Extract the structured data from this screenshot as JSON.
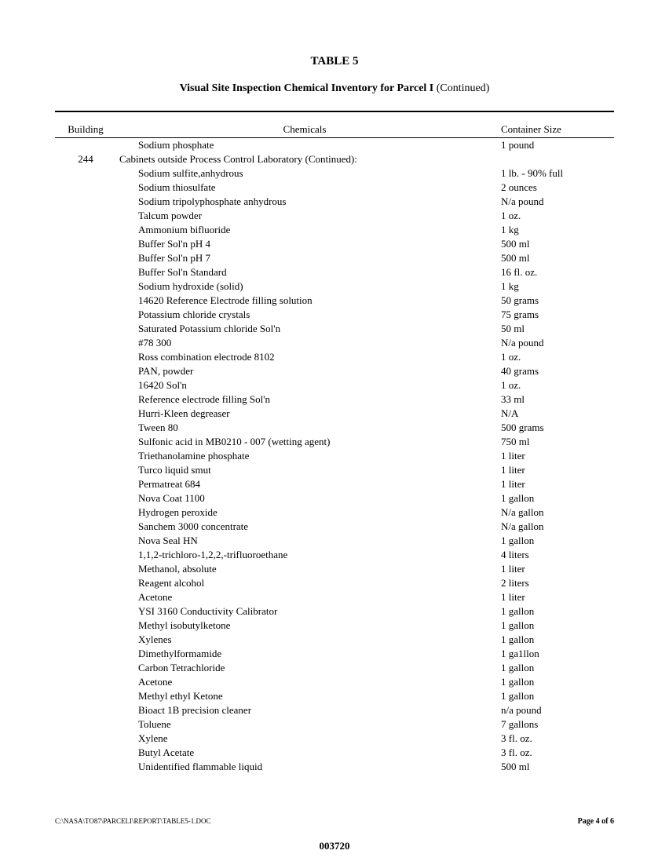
{
  "table_number": "TABLE 5",
  "title_bold": "Visual Site Inspection Chemical Inventory for Parcel I",
  "title_rest": " (Continued)",
  "columns": {
    "building": "Building",
    "chemicals": "Chemicals",
    "container": "Container Size"
  },
  "first_row": {
    "building": "",
    "chemical": "Sodium phosphate",
    "size": "1 pound"
  },
  "section": {
    "building": "244",
    "heading": "Cabinets outside Process Control Laboratory (Continued):"
  },
  "rows": [
    {
      "chemical": "Sodium sulfite,anhydrous",
      "size": "1 lb. - 90% full"
    },
    {
      "chemical": "Sodium thiosulfate",
      "size": "2 ounces"
    },
    {
      "chemical": "Sodium tripolyphosphate anhydrous",
      "size": "N/a pound"
    },
    {
      "chemical": "Talcum powder",
      "size": "1 oz."
    },
    {
      "chemical": "Ammonium bifluoride",
      "size": "1 kg"
    },
    {
      "chemical": "Buffer Sol'n pH 4",
      "size": "500 ml"
    },
    {
      "chemical": "Buffer Sol'n pH 7",
      "size": "500 ml"
    },
    {
      "chemical": "Buffer Sol'n Standard",
      "size": "16 fl. oz."
    },
    {
      "chemical": "Sodium hydroxide (solid)",
      "size": "1 kg"
    },
    {
      "chemical": "14620 Reference Electrode filling solution",
      "size": "50 grams"
    },
    {
      "chemical": "Potassium chloride crystals",
      "size": "75 grams"
    },
    {
      "chemical": "Saturated Potassium chloride Sol'n",
      "size": "50 ml"
    },
    {
      "chemical": "#78 300",
      "size": "N/a pound"
    },
    {
      "chemical": "Ross combination electrode 8102",
      "size": "1 oz."
    },
    {
      "chemical": "PAN, powder",
      "size": "40 grams"
    },
    {
      "chemical": "16420 Sol'n",
      "size": "1  oz."
    },
    {
      "chemical": "Reference electrode filling Sol'n",
      "size": "33 ml"
    },
    {
      "chemical": "Hurri-Kleen degreaser",
      "size": "N/A"
    },
    {
      "chemical": "Tween 80",
      "size": "500 grams"
    },
    {
      "chemical": "Sulfonic acid in MB0210 - 007 (wetting agent)",
      "size": "750 ml"
    },
    {
      "chemical": "Triethanolamine  phosphate",
      "size": "1 liter"
    },
    {
      "chemical": "Turco liquid smut",
      "size": "1 liter"
    },
    {
      "chemical": "Permatreat 684",
      "size": "1 liter"
    },
    {
      "chemical": "Nova Coat 1100",
      "size": "1 gallon"
    },
    {
      "chemical": "Hydrogen peroxide",
      "size": "N/a gallon"
    },
    {
      "chemical": "Sanchem 3000 concentrate",
      "size": "N/a gallon"
    },
    {
      "chemical": "Nova Seal HN",
      "size": "1 gallon"
    },
    {
      "chemical": "1,1,2-trichloro-1,2,2,-trifluoroethane",
      "size": "4 liters"
    },
    {
      "chemical": "Methanol, absolute",
      "size": "1 liter"
    },
    {
      "chemical": "Reagent alcohol",
      "size": "2 liters"
    },
    {
      "chemical": "Acetone",
      "size": "1 liter"
    },
    {
      "chemical": "YSI 3160 Conductivity Calibrator",
      "size": "1 gallon"
    },
    {
      "chemical": "Methyl isobutylketone",
      "size": "1  gallon"
    },
    {
      "chemical": "Xylenes",
      "size": "1 gallon"
    },
    {
      "chemical": "Dimethylformamide",
      "size": "1 ga1llon"
    },
    {
      "chemical": "Carbon Tetrachloride",
      "size": "1 gallon"
    },
    {
      "chemical": "Acetone",
      "size": "1 gallon"
    },
    {
      "chemical": "Methyl ethyl Ketone",
      "size": "1 gallon"
    },
    {
      "chemical": "Bioact 1B precision cleaner",
      "size": "n/a pound"
    },
    {
      "chemical": "Toluene",
      "size": "7  gallons"
    },
    {
      "chemical": "Xylene",
      "size": "3 fl. oz."
    },
    {
      "chemical": "Butyl Acetate",
      "size": "3 fl. oz."
    },
    {
      "chemical": "Unidentified flammable liquid",
      "size": "500 ml"
    }
  ],
  "footer_left": "C:\\NASA\\TO87\\PARCELI\\REPORT\\TABLE5-1.DOC",
  "footer_right": "Page 4 of 6",
  "bates": "003720"
}
